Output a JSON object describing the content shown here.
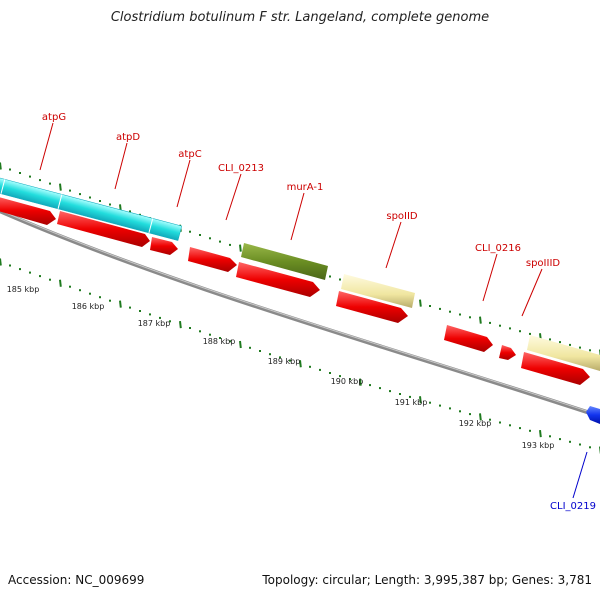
{
  "title": "Clostridium botulinum F str. Langeland, complete genome",
  "footer": {
    "accession": "Accession: NC_009699",
    "summary": "Topology: circular; Length: 3,995,387 bp; Genes: 3,781"
  },
  "colors": {
    "backbone": "#8a8a8a",
    "tick": "#1f7a1f",
    "cds": "#ee1111",
    "atp_operon": "#33dddd",
    "murA": "#6b8e23",
    "spo": "#f0e6a0",
    "minus_strand": "#1133ee",
    "label_red": "#cc0000",
    "label_blue": "#0000cc"
  },
  "ruler_labels": [
    "185 kbp",
    "186 kbp",
    "187 kbp",
    "188 kbp",
    "189 kbp",
    "190 kbp",
    "191 kbp",
    "192 kbp",
    "193 kbp"
  ],
  "gene_labels": [
    {
      "name": "atpG",
      "color": "label_red"
    },
    {
      "name": "atpD",
      "color": "label_red"
    },
    {
      "name": "atpC",
      "color": "label_red"
    },
    {
      "name": "CLI_0213",
      "color": "label_red"
    },
    {
      "name": "murA-1",
      "color": "label_red"
    },
    {
      "name": "spoIID",
      "color": "label_red"
    },
    {
      "name": "CLI_0216",
      "color": "label_red"
    },
    {
      "name": "spoIIID",
      "color": "label_red"
    },
    {
      "name": "CLI_0219",
      "color": "label_blue"
    }
  ]
}
